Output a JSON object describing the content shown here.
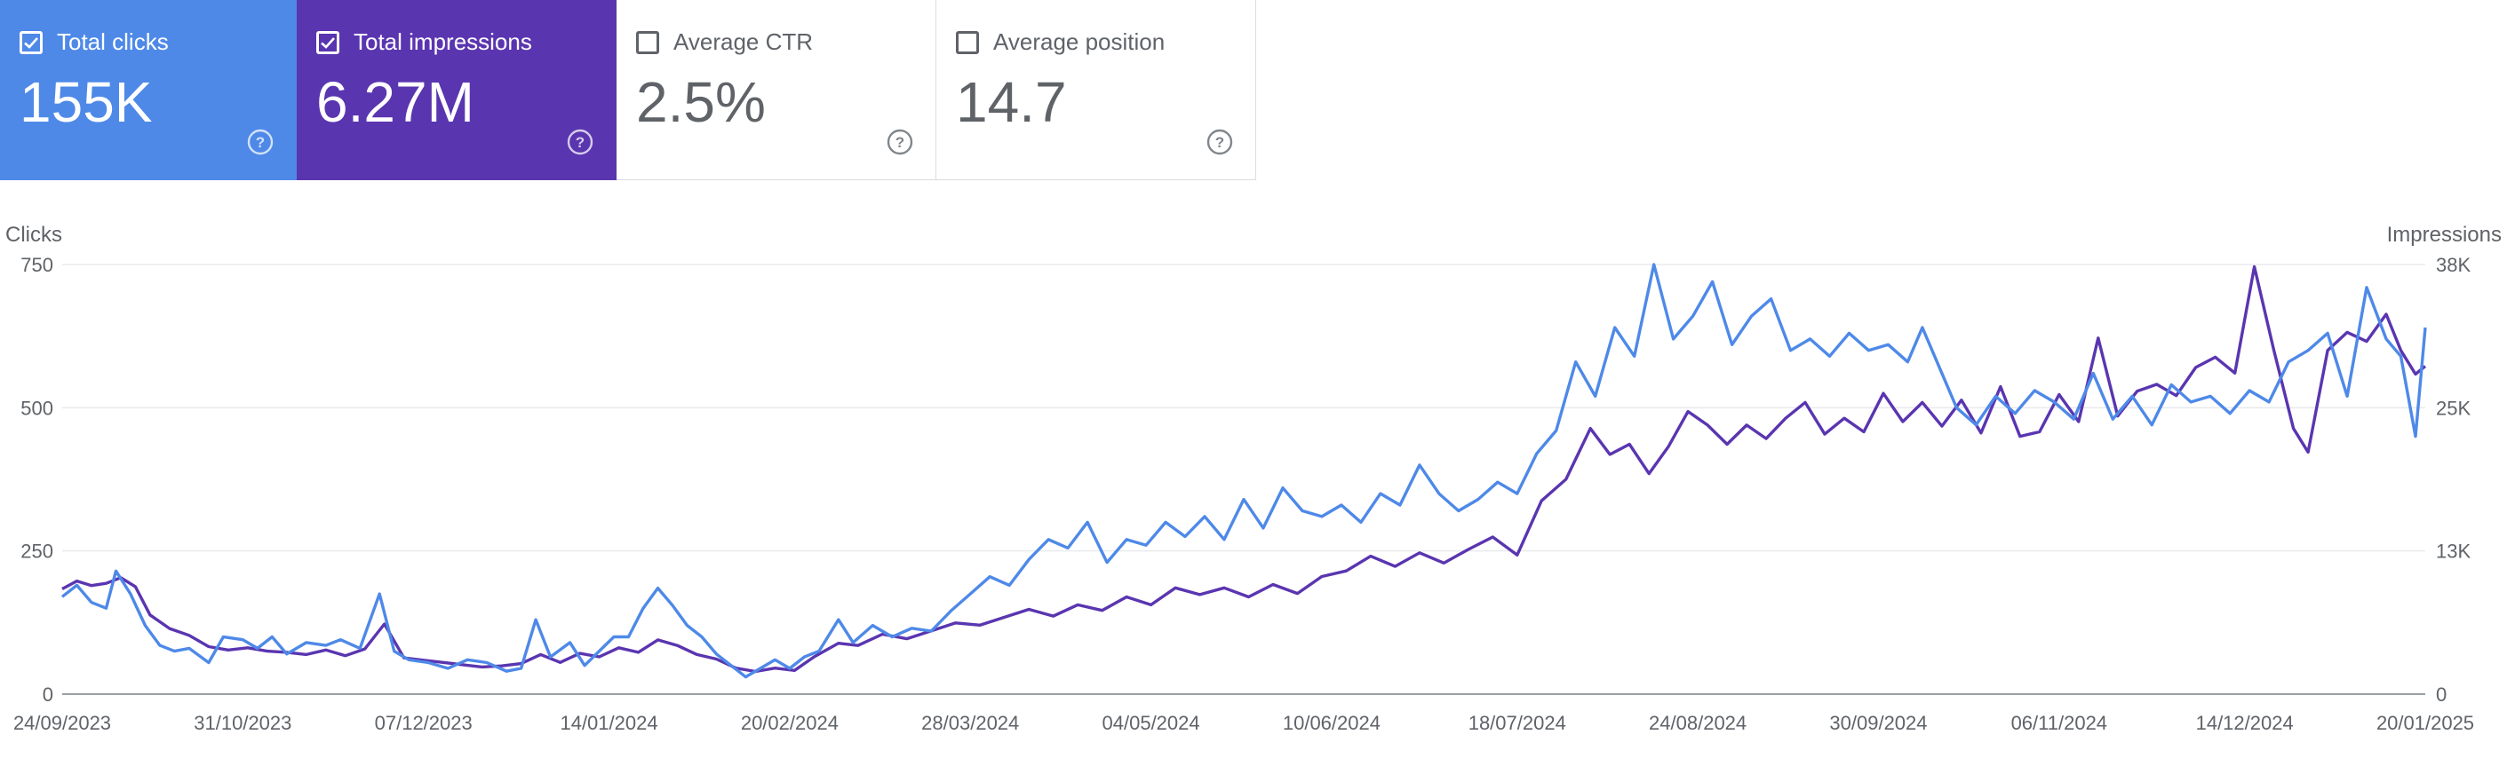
{
  "metrics": [
    {
      "label": "Total clicks",
      "value": "155K",
      "checked": true,
      "color": "#4e89e8",
      "icon": "help-icon"
    },
    {
      "label": "Total impressions",
      "value": "6.27M",
      "checked": true,
      "color": "#5a35b0",
      "icon": "help-icon"
    },
    {
      "label": "Average CTR",
      "value": "2.5%",
      "checked": false,
      "color": "#ffffff",
      "icon": "help-icon"
    },
    {
      "label": "Average position",
      "value": "14.7",
      "checked": false,
      "color": "#ffffff",
      "icon": "help-icon"
    }
  ],
  "chart_data": {
    "type": "line",
    "ylabel_left": "Clicks",
    "ylabel_right": "Impressions",
    "y_left_ticks": [
      "0",
      "250",
      "500",
      "750"
    ],
    "y_left_range": [
      0,
      750
    ],
    "y_right_ticks": [
      "0",
      "13K",
      "25K",
      "38K"
    ],
    "y_right_range": [
      0,
      38000
    ],
    "x_start": "2023-09-24",
    "x_end": "2025-01-20",
    "x_tick_labels": [
      "24/09/2023",
      "31/10/2023",
      "07/12/2023",
      "14/01/2024",
      "20/02/2024",
      "28/03/2024",
      "04/05/2024",
      "10/06/2024",
      "18/07/2024",
      "24/08/2024",
      "30/09/2024",
      "06/11/2024",
      "14/12/2024",
      "20/01/2025"
    ],
    "grid": true,
    "series": [
      {
        "name": "Clicks",
        "axis": "left",
        "color": "#4e89e8",
        "points": [
          [
            "2023-09-24",
            170
          ],
          [
            "2023-09-27",
            190
          ],
          [
            "2023-09-30",
            160
          ],
          [
            "2023-10-03",
            150
          ],
          [
            "2023-10-05",
            215
          ],
          [
            "2023-10-08",
            175
          ],
          [
            "2023-10-11",
            120
          ],
          [
            "2023-10-14",
            85
          ],
          [
            "2023-10-17",
            75
          ],
          [
            "2023-10-20",
            80
          ],
          [
            "2023-10-24",
            55
          ],
          [
            "2023-10-27",
            100
          ],
          [
            "2023-10-31",
            95
          ],
          [
            "2023-11-03",
            80
          ],
          [
            "2023-11-06",
            100
          ],
          [
            "2023-11-09",
            70
          ],
          [
            "2023-11-13",
            90
          ],
          [
            "2023-11-17",
            85
          ],
          [
            "2023-11-20",
            95
          ],
          [
            "2023-11-24",
            80
          ],
          [
            "2023-11-28",
            175
          ],
          [
            "2023-12-01",
            75
          ],
          [
            "2023-12-04",
            60
          ],
          [
            "2023-12-08",
            55
          ],
          [
            "2023-12-12",
            45
          ],
          [
            "2023-12-16",
            60
          ],
          [
            "2023-12-20",
            55
          ],
          [
            "2023-12-24",
            40
          ],
          [
            "2023-12-27",
            45
          ],
          [
            "2023-12-30",
            130
          ],
          [
            "2024-01-02",
            65
          ],
          [
            "2024-01-06",
            90
          ],
          [
            "2024-01-09",
            50
          ],
          [
            "2024-01-12",
            75
          ],
          [
            "2024-01-15",
            100
          ],
          [
            "2024-01-18",
            100
          ],
          [
            "2024-01-21",
            150
          ],
          [
            "2024-01-24",
            185
          ],
          [
            "2024-01-27",
            155
          ],
          [
            "2024-01-30",
            120
          ],
          [
            "2024-02-02",
            100
          ],
          [
            "2024-02-05",
            70
          ],
          [
            "2024-02-08",
            50
          ],
          [
            "2024-02-11",
            30
          ],
          [
            "2024-02-14",
            45
          ],
          [
            "2024-02-17",
            60
          ],
          [
            "2024-02-20",
            45
          ],
          [
            "2024-02-23",
            65
          ],
          [
            "2024-02-26",
            75
          ],
          [
            "2024-03-01",
            130
          ],
          [
            "2024-03-04",
            90
          ],
          [
            "2024-03-08",
            120
          ],
          [
            "2024-03-12",
            100
          ],
          [
            "2024-03-16",
            115
          ],
          [
            "2024-03-20",
            110
          ],
          [
            "2024-03-24",
            145
          ],
          [
            "2024-03-28",
            175
          ],
          [
            "2024-04-01",
            205
          ],
          [
            "2024-04-05",
            190
          ],
          [
            "2024-04-09",
            235
          ],
          [
            "2024-04-13",
            270
          ],
          [
            "2024-04-17",
            255
          ],
          [
            "2024-04-21",
            300
          ],
          [
            "2024-04-25",
            230
          ],
          [
            "2024-04-29",
            270
          ],
          [
            "2024-05-03",
            260
          ],
          [
            "2024-05-07",
            300
          ],
          [
            "2024-05-11",
            275
          ],
          [
            "2024-05-15",
            310
          ],
          [
            "2024-05-19",
            270
          ],
          [
            "2024-05-23",
            340
          ],
          [
            "2024-05-27",
            290
          ],
          [
            "2024-05-31",
            360
          ],
          [
            "2024-06-04",
            320
          ],
          [
            "2024-06-08",
            310
          ],
          [
            "2024-06-12",
            330
          ],
          [
            "2024-06-16",
            300
          ],
          [
            "2024-06-20",
            350
          ],
          [
            "2024-06-24",
            330
          ],
          [
            "2024-06-28",
            400
          ],
          [
            "2024-07-02",
            350
          ],
          [
            "2024-07-06",
            320
          ],
          [
            "2024-07-10",
            340
          ],
          [
            "2024-07-14",
            370
          ],
          [
            "2024-07-18",
            350
          ],
          [
            "2024-07-22",
            420
          ],
          [
            "2024-07-26",
            460
          ],
          [
            "2024-07-30",
            580
          ],
          [
            "2024-08-03",
            520
          ],
          [
            "2024-08-07",
            640
          ],
          [
            "2024-08-11",
            590
          ],
          [
            "2024-08-15",
            750
          ],
          [
            "2024-08-19",
            620
          ],
          [
            "2024-08-23",
            660
          ],
          [
            "2024-08-27",
            720
          ],
          [
            "2024-08-31",
            610
          ],
          [
            "2024-09-04",
            660
          ],
          [
            "2024-09-08",
            690
          ],
          [
            "2024-09-12",
            600
          ],
          [
            "2024-09-16",
            620
          ],
          [
            "2024-09-20",
            590
          ],
          [
            "2024-09-24",
            630
          ],
          [
            "2024-09-28",
            600
          ],
          [
            "2024-10-02",
            610
          ],
          [
            "2024-10-06",
            580
          ],
          [
            "2024-10-09",
            640
          ],
          [
            "2024-10-12",
            580
          ],
          [
            "2024-10-16",
            500
          ],
          [
            "2024-10-20",
            470
          ],
          [
            "2024-10-24",
            520
          ],
          [
            "2024-10-28",
            490
          ],
          [
            "2024-11-01",
            530
          ],
          [
            "2024-11-05",
            510
          ],
          [
            "2024-11-09",
            480
          ],
          [
            "2024-11-13",
            560
          ],
          [
            "2024-11-17",
            480
          ],
          [
            "2024-11-21",
            520
          ],
          [
            "2024-11-25",
            470
          ],
          [
            "2024-11-29",
            540
          ],
          [
            "2024-12-03",
            510
          ],
          [
            "2024-12-07",
            520
          ],
          [
            "2024-12-11",
            490
          ],
          [
            "2024-12-15",
            530
          ],
          [
            "2024-12-19",
            510
          ],
          [
            "2024-12-23",
            580
          ],
          [
            "2024-12-27",
            600
          ],
          [
            "2024-12-31",
            630
          ],
          [
            "2025-01-04",
            520
          ],
          [
            "2025-01-08",
            710
          ],
          [
            "2025-01-12",
            620
          ],
          [
            "2025-01-15",
            590
          ],
          [
            "2025-01-18",
            450
          ],
          [
            "2025-01-20",
            640
          ]
        ]
      },
      {
        "name": "Impressions",
        "axis": "right",
        "color": "#5a35b0",
        "points": [
          [
            "2023-09-24",
            9300
          ],
          [
            "2023-09-27",
            10000
          ],
          [
            "2023-09-30",
            9600
          ],
          [
            "2023-10-03",
            9800
          ],
          [
            "2023-10-06",
            10300
          ],
          [
            "2023-10-09",
            9500
          ],
          [
            "2023-10-12",
            7000
          ],
          [
            "2023-10-16",
            5800
          ],
          [
            "2023-10-20",
            5200
          ],
          [
            "2023-10-24",
            4200
          ],
          [
            "2023-10-28",
            3900
          ],
          [
            "2023-11-01",
            4100
          ],
          [
            "2023-11-05",
            3800
          ],
          [
            "2023-11-09",
            3700
          ],
          [
            "2023-11-13",
            3500
          ],
          [
            "2023-11-17",
            3900
          ],
          [
            "2023-11-21",
            3400
          ],
          [
            "2023-11-25",
            4000
          ],
          [
            "2023-11-29",
            6200
          ],
          [
            "2023-12-03",
            3200
          ],
          [
            "2023-12-07",
            3000
          ],
          [
            "2023-12-11",
            2800
          ],
          [
            "2023-12-15",
            2600
          ],
          [
            "2023-12-19",
            2400
          ],
          [
            "2023-12-23",
            2500
          ],
          [
            "2023-12-27",
            2700
          ],
          [
            "2023-12-31",
            3500
          ],
          [
            "2024-01-04",
            2800
          ],
          [
            "2024-01-08",
            3600
          ],
          [
            "2024-01-12",
            3300
          ],
          [
            "2024-01-16",
            4100
          ],
          [
            "2024-01-20",
            3700
          ],
          [
            "2024-01-24",
            4800
          ],
          [
            "2024-01-28",
            4300
          ],
          [
            "2024-02-01",
            3500
          ],
          [
            "2024-02-05",
            3100
          ],
          [
            "2024-02-09",
            2300
          ],
          [
            "2024-02-13",
            2000
          ],
          [
            "2024-02-17",
            2300
          ],
          [
            "2024-02-21",
            2100
          ],
          [
            "2024-02-25",
            3300
          ],
          [
            "2024-03-01",
            4500
          ],
          [
            "2024-03-05",
            4300
          ],
          [
            "2024-03-10",
            5300
          ],
          [
            "2024-03-15",
            4900
          ],
          [
            "2024-03-20",
            5600
          ],
          [
            "2024-03-25",
            6300
          ],
          [
            "2024-03-30",
            6100
          ],
          [
            "2024-04-04",
            6800
          ],
          [
            "2024-04-09",
            7500
          ],
          [
            "2024-04-14",
            6900
          ],
          [
            "2024-04-19",
            7900
          ],
          [
            "2024-04-24",
            7400
          ],
          [
            "2024-04-29",
            8600
          ],
          [
            "2024-05-04",
            7900
          ],
          [
            "2024-05-09",
            9400
          ],
          [
            "2024-05-14",
            8800
          ],
          [
            "2024-05-19",
            9400
          ],
          [
            "2024-05-24",
            8600
          ],
          [
            "2024-05-29",
            9700
          ],
          [
            "2024-06-03",
            8900
          ],
          [
            "2024-06-08",
            10400
          ],
          [
            "2024-06-13",
            10900
          ],
          [
            "2024-06-18",
            12200
          ],
          [
            "2024-06-23",
            11300
          ],
          [
            "2024-06-28",
            12500
          ],
          [
            "2024-07-03",
            11600
          ],
          [
            "2024-07-08",
            12800
          ],
          [
            "2024-07-13",
            13900
          ],
          [
            "2024-07-18",
            12300
          ],
          [
            "2024-07-23",
            17100
          ],
          [
            "2024-07-28",
            19000
          ],
          [
            "2024-08-02",
            23500
          ],
          [
            "2024-08-06",
            21200
          ],
          [
            "2024-08-10",
            22100
          ],
          [
            "2024-08-14",
            19500
          ],
          [
            "2024-08-18",
            21900
          ],
          [
            "2024-08-22",
            25000
          ],
          [
            "2024-08-26",
            23800
          ],
          [
            "2024-08-30",
            22100
          ],
          [
            "2024-09-03",
            23800
          ],
          [
            "2024-09-07",
            22600
          ],
          [
            "2024-09-11",
            24400
          ],
          [
            "2024-09-15",
            25800
          ],
          [
            "2024-09-19",
            23000
          ],
          [
            "2024-09-23",
            24400
          ],
          [
            "2024-09-27",
            23200
          ],
          [
            "2024-10-01",
            26600
          ],
          [
            "2024-10-05",
            24100
          ],
          [
            "2024-10-09",
            25800
          ],
          [
            "2024-10-13",
            23700
          ],
          [
            "2024-10-17",
            26000
          ],
          [
            "2024-10-21",
            23100
          ],
          [
            "2024-10-25",
            27200
          ],
          [
            "2024-10-29",
            22800
          ],
          [
            "2024-11-02",
            23200
          ],
          [
            "2024-11-06",
            26500
          ],
          [
            "2024-11-10",
            24100
          ],
          [
            "2024-11-14",
            31500
          ],
          [
            "2024-11-18",
            24600
          ],
          [
            "2024-11-22",
            26800
          ],
          [
            "2024-11-26",
            27400
          ],
          [
            "2024-11-30",
            26400
          ],
          [
            "2024-12-04",
            28900
          ],
          [
            "2024-12-08",
            29800
          ],
          [
            "2024-12-12",
            28400
          ],
          [
            "2024-12-16",
            37800
          ],
          [
            "2024-12-20",
            30400
          ],
          [
            "2024-12-24",
            23500
          ],
          [
            "2024-12-27",
            21400
          ],
          [
            "2024-12-31",
            30400
          ],
          [
            "2025-01-04",
            32000
          ],
          [
            "2025-01-08",
            31200
          ],
          [
            "2025-01-12",
            33600
          ],
          [
            "2025-01-15",
            30400
          ],
          [
            "2025-01-18",
            28300
          ],
          [
            "2025-01-20",
            29000
          ]
        ]
      }
    ]
  }
}
